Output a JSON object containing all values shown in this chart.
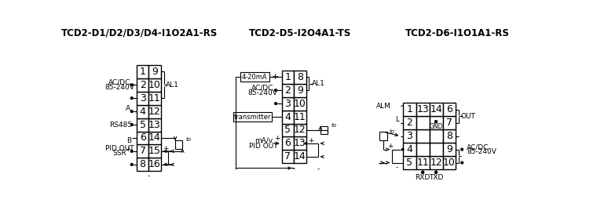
{
  "title1": "TCD2-D1/D2/D3/D4-I1O2A1-RS",
  "title2": "TCD2-D5-I2O4A1-TS",
  "title3": "TCD2-D6-I1O1A1-RS",
  "bg_color": "#ffffff",
  "text_color": "#000000",
  "line_color": "#000000",
  "font_size_title": 8.5,
  "font_size_label": 6.5,
  "font_size_pin": 9
}
